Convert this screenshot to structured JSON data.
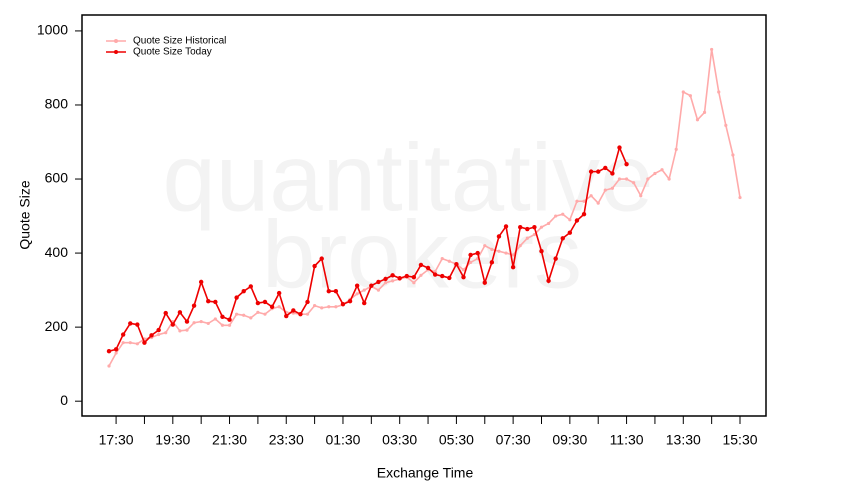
{
  "chart_data": {
    "type": "line",
    "watermark": [
      "quantitative",
      "brokers"
    ],
    "y_label": "Quote Size",
    "x_label": "Exchange Time",
    "categories": [
      null,
      "17:30",
      null,
      null,
      null,
      null,
      null,
      null,
      null,
      "19:30",
      null,
      null,
      null,
      null,
      null,
      null,
      null,
      "21:30",
      null,
      null,
      null,
      null,
      null,
      null,
      null,
      "23:30",
      null,
      null,
      null,
      null,
      null,
      null,
      null,
      "01:30",
      null,
      null,
      null,
      null,
      null,
      null,
      null,
      "03:30",
      null,
      null,
      null,
      null,
      null,
      null,
      null,
      "05:30",
      null,
      null,
      null,
      null,
      null,
      null,
      null,
      "07:30",
      null,
      null,
      null,
      null,
      null,
      null,
      null,
      "09:30",
      null,
      null,
      null,
      null,
      null,
      null,
      null,
      "11:30",
      null,
      null,
      null,
      null,
      null,
      null,
      null,
      "13:30",
      null,
      null,
      null,
      null,
      null,
      null,
      null,
      "15:30"
    ],
    "series": [
      {
        "name": "Quote Size Historical",
        "color": "#ffaaaa",
        "values": [
          95,
          130,
          158,
          158,
          155,
          168,
          172,
          180,
          185,
          215,
          190,
          192,
          212,
          215,
          210,
          222,
          205,
          205,
          235,
          232,
          225,
          240,
          235,
          250,
          255,
          240,
          238,
          235,
          235,
          258,
          252,
          255,
          255,
          260,
          275,
          290,
          300,
          310,
          300,
          320,
          325,
          330,
          335,
          320,
          340,
          355,
          350,
          385,
          378,
          370,
          355,
          375,
          385,
          420,
          410,
          405,
          400,
          395,
          420,
          440,
          450,
          470,
          480,
          500,
          505,
          490,
          540,
          540,
          555,
          535,
          570,
          575,
          600,
          600,
          590,
          555,
          600,
          615,
          625,
          600,
          680,
          835,
          825,
          760,
          780,
          950,
          835,
          745,
          665,
          550
        ]
      },
      {
        "name": "Quote Size Today",
        "color": "#ee0000",
        "values": [
          135,
          140,
          180,
          210,
          207,
          158,
          178,
          192,
          238,
          207,
          240,
          215,
          258,
          322,
          270,
          268,
          228,
          220,
          280,
          297,
          310,
          265,
          268,
          255,
          292,
          230,
          245,
          235,
          268,
          365,
          385,
          297,
          297,
          262,
          270,
          312,
          265,
          312,
          322,
          330,
          340,
          332,
          338,
          335,
          368,
          360,
          342,
          338,
          333,
          370,
          335,
          395,
          400,
          320,
          375,
          445,
          472,
          362,
          470,
          465,
          470,
          405,
          325,
          385,
          440,
          455,
          488,
          505,
          620,
          620,
          630,
          615,
          685,
          640,
          null,
          null,
          null,
          null,
          null,
          null,
          null,
          null,
          null,
          null,
          null,
          null,
          null,
          null,
          null,
          null
        ]
      }
    ],
    "ylim": [
      -40,
      1043
    ],
    "yticks": [
      0,
      200,
      400,
      600,
      800,
      1000
    ],
    "legend": "top-left"
  }
}
